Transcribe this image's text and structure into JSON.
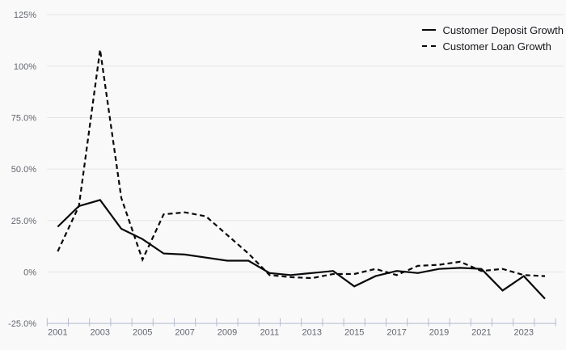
{
  "chart_data": {
    "type": "line",
    "title": "",
    "xlabel": "",
    "ylabel": "",
    "x": [
      2001,
      2002,
      2003,
      2004,
      2005,
      2006,
      2007,
      2008,
      2009,
      2010,
      2011,
      2012,
      2013,
      2014,
      2015,
      2016,
      2017,
      2018,
      2019,
      2020,
      2021,
      2022,
      2023,
      2024
    ],
    "series": [
      {
        "name": "Customer Deposit Growth",
        "line_style": "solid",
        "values": [
          22,
          32,
          35,
          21,
          16,
          9,
          8.5,
          7,
          5.5,
          5.5,
          -0.5,
          -1.5,
          -0.5,
          0.5,
          -7,
          -2,
          0.5,
          -0.5,
          1.5,
          2,
          1.5,
          -9,
          -2,
          -13
        ]
      },
      {
        "name": "Customer Loan Growth",
        "line_style": "dashed",
        "values": [
          10,
          32,
          108,
          36,
          6,
          28,
          29,
          27,
          18,
          9,
          -1.5,
          -2.5,
          -3,
          -1,
          -1,
          1.5,
          -1.5,
          3,
          3.5,
          5,
          0.5,
          1.5,
          -1.5,
          -2
        ]
      }
    ],
    "ylim": [
      -25,
      125
    ],
    "y_ticks": [
      {
        "value": 125,
        "label": "125%"
      },
      {
        "value": 100,
        "label": "100%"
      },
      {
        "value": 75,
        "label": "75.0%"
      },
      {
        "value": 50,
        "label": "50.0%"
      },
      {
        "value": 25,
        "label": "25.0%"
      },
      {
        "value": 0,
        "label": "0%"
      },
      {
        "value": -25,
        "label": "-25.0%"
      }
    ],
    "x_tick_labels": [
      "2001",
      "2003",
      "2005",
      "2007",
      "2009",
      "2011",
      "2013",
      "2015",
      "2017",
      "2019",
      "2021",
      "2023"
    ],
    "grid": true,
    "legend_position": "top-right",
    "colors": {
      "line": "#09090b",
      "grid": "#e4e4e6",
      "axis": "#b4bcd0",
      "tick_label": "#63666d",
      "legend_text": "#15171a",
      "background": "#f9f9fa"
    }
  }
}
